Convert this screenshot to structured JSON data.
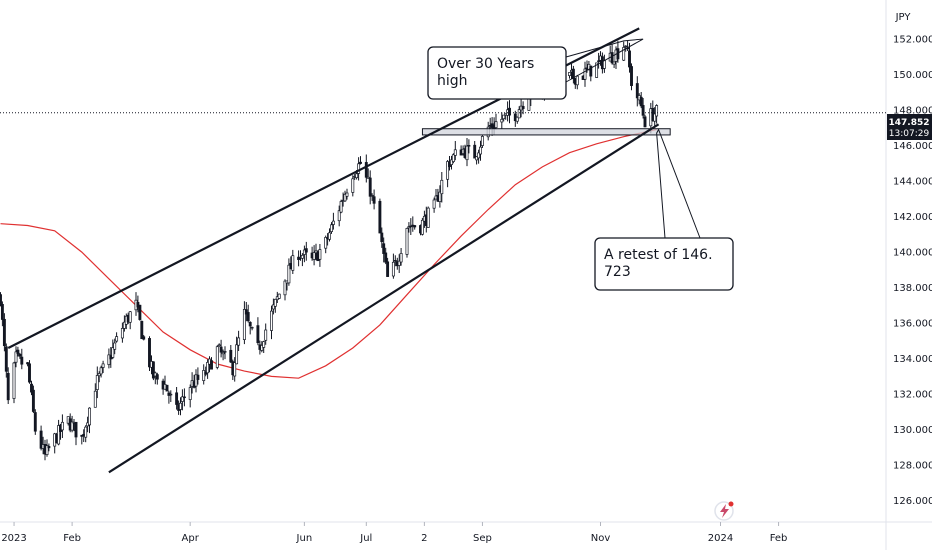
{
  "chart_data": {
    "type": "candlestick",
    "title": "",
    "currency_label": "JPY",
    "ylim": [
      124.8,
      154.2
    ],
    "y_ticks": [
      "152.000",
      "150.000",
      "148.000",
      "146.000",
      "144.000",
      "142.000",
      "140.000",
      "138.000",
      "136.000",
      "134.000",
      "132.000",
      "130.000",
      "128.000",
      "126.000"
    ],
    "x_ticks": [
      {
        "label": "2023",
        "date": "2023-01-02"
      },
      {
        "label": "Feb",
        "date": "2023-02-01"
      },
      {
        "label": "Apr",
        "date": "2023-04-03"
      },
      {
        "label": "Jun",
        "date": "2023-06-01"
      },
      {
        "label": "Jul",
        "date": "2023-07-03"
      },
      {
        "label": "2",
        "date": "2023-08-02"
      },
      {
        "label": "Sep",
        "date": "2023-09-01"
      },
      {
        "label": "Nov",
        "date": "2023-11-01"
      },
      {
        "label": "2024",
        "date": "2024-01-02"
      },
      {
        "label": "Feb",
        "date": "2024-02-01"
      }
    ],
    "first_bar_date": "2022-12-26",
    "last_price": {
      "value": "147.852",
      "countdown": "13:07:29",
      "y": 147.852
    },
    "close_path": [
      [
        "2022-12-26",
        137.5
      ],
      [
        "2022-12-30",
        131.5
      ],
      [
        "2023-01-03",
        134.0
      ],
      [
        "2023-01-09",
        133.5
      ],
      [
        "2023-01-13",
        130.0
      ],
      [
        "2023-01-18",
        128.5
      ],
      [
        "2023-01-23",
        129.5
      ],
      [
        "2023-01-30",
        130.5
      ],
      [
        "2023-02-06",
        129.5
      ],
      [
        "2023-02-13",
        132.5
      ],
      [
        "2023-02-20",
        134.0
      ],
      [
        "2023-02-28",
        136.0
      ],
      [
        "2023-03-06",
        137.0
      ],
      [
        "2023-03-10",
        135.0
      ],
      [
        "2023-03-15",
        133.0
      ],
      [
        "2023-03-21",
        132.5
      ],
      [
        "2023-03-27",
        131.0
      ],
      [
        "2023-04-03",
        132.5
      ],
      [
        "2023-04-10",
        133.0
      ],
      [
        "2023-04-17",
        134.5
      ],
      [
        "2023-04-25",
        133.5
      ],
      [
        "2023-05-01",
        136.5
      ],
      [
        "2023-05-08",
        134.5
      ],
      [
        "2023-05-15",
        136.5
      ],
      [
        "2023-05-22",
        138.5
      ],
      [
        "2023-05-29",
        140.0
      ],
      [
        "2023-06-05",
        139.5
      ],
      [
        "2023-06-12",
        140.5
      ],
      [
        "2023-06-19",
        142.5
      ],
      [
        "2023-06-26",
        144.5
      ],
      [
        "2023-06-30",
        145.0
      ],
      [
        "2023-07-05",
        143.5
      ],
      [
        "2023-07-10",
        141.0
      ],
      [
        "2023-07-14",
        138.5
      ],
      [
        "2023-07-19",
        139.5
      ],
      [
        "2023-07-24",
        141.5
      ],
      [
        "2023-07-31",
        141.5
      ],
      [
        "2023-08-07",
        142.5
      ],
      [
        "2023-08-14",
        145.0
      ],
      [
        "2023-08-21",
        145.8
      ],
      [
        "2023-08-28",
        145.5
      ],
      [
        "2023-09-04",
        147.0
      ],
      [
        "2023-09-11",
        147.5
      ],
      [
        "2023-09-18",
        147.8
      ],
      [
        "2023-09-25",
        149.0
      ],
      [
        "2023-10-02",
        149.2
      ],
      [
        "2023-10-09",
        149.5
      ],
      [
        "2023-10-16",
        149.8
      ],
      [
        "2023-10-23",
        150.0
      ],
      [
        "2023-10-30",
        150.5
      ],
      [
        "2023-11-06",
        151.0
      ],
      [
        "2023-11-10",
        151.3
      ],
      [
        "2023-11-14",
        151.8
      ],
      [
        "2023-11-17",
        149.6
      ],
      [
        "2023-11-22",
        148.2
      ],
      [
        "2023-11-24",
        147.4
      ],
      [
        "2023-11-28",
        147.8
      ],
      [
        "2023-11-30",
        147.852
      ]
    ],
    "moving_average": {
      "color": "#e03131",
      "points": [
        [
          "2022-12-26",
          141.6
        ],
        [
          "2023-01-09",
          141.5
        ],
        [
          "2023-01-23",
          141.2
        ],
        [
          "2023-02-06",
          140.0
        ],
        [
          "2023-02-20",
          138.5
        ],
        [
          "2023-03-06",
          137.0
        ],
        [
          "2023-03-20",
          135.5
        ],
        [
          "2023-04-03",
          134.5
        ],
        [
          "2023-04-17",
          133.7
        ],
        [
          "2023-05-01",
          133.3
        ],
        [
          "2023-05-15",
          133.0
        ],
        [
          "2023-05-29",
          132.9
        ],
        [
          "2023-06-12",
          133.6
        ],
        [
          "2023-06-26",
          134.6
        ],
        [
          "2023-07-10",
          135.9
        ],
        [
          "2023-07-24",
          137.6
        ],
        [
          "2023-08-07",
          139.3
        ],
        [
          "2023-08-21",
          140.9
        ],
        [
          "2023-09-04",
          142.4
        ],
        [
          "2023-09-18",
          143.8
        ],
        [
          "2023-10-02",
          144.8
        ],
        [
          "2023-10-16",
          145.6
        ],
        [
          "2023-10-30",
          146.1
        ],
        [
          "2023-11-13",
          146.5
        ],
        [
          "2023-11-30",
          146.9
        ]
      ]
    },
    "trendlines": [
      {
        "name": "upper-channel",
        "from": [
          "2022-12-30",
          134.6
        ],
        "to": [
          "2023-11-21",
          152.6
        ]
      },
      {
        "name": "lower-channel",
        "from": [
          "2023-02-20",
          127.6
        ],
        "to": [
          "2023-12-01",
          147.2
        ]
      }
    ],
    "support_zone": {
      "label_ref": "146.723",
      "y_top": 146.95,
      "y_bottom": 146.6,
      "from": "2023-08-01",
      "to": "2023-12-07"
    },
    "annotations": [
      {
        "text_lines": [
          "Over 30 Years",
          "high"
        ],
        "target": [
          "2023-11-13",
          151.9
        ]
      },
      {
        "text_lines": [
          "A retest of 146.",
          "723"
        ],
        "target": [
          "2023-11-30",
          146.7
        ]
      }
    ],
    "colors": {
      "bull": "#131722",
      "bear": "#131722",
      "grid": "#e0e3eb",
      "line": "#131722"
    }
  }
}
